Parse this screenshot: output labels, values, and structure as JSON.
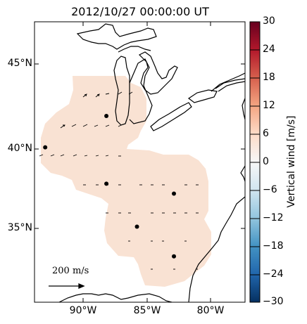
{
  "title": "2012/10/27 00:00:00 UT",
  "lat_ticks": [
    {
      "label": "45°N",
      "lat": 45
    },
    {
      "label": "40°N",
      "lat": 40
    },
    {
      "label": "35°N",
      "lat": 35
    }
  ],
  "lon_ticks": [
    {
      "label": "90°W",
      "lon": -90
    },
    {
      "label": "85°W",
      "lon": -85
    },
    {
      "label": "80°W",
      "lon": -80
    }
  ],
  "colorbar": {
    "title": "Vertical wind [m/s]",
    "ticks": [
      "30",
      "24",
      "18",
      "12",
      "6",
      "0",
      "−6",
      "−12",
      "−18",
      "−24",
      "−30"
    ],
    "min": -30,
    "max": 30,
    "colormap": "RdBu_r"
  },
  "scale_arrow": {
    "label": "200 m/s",
    "value": 200
  },
  "field": {
    "fill_color": "#f9e2d3",
    "value_mps": 3
  },
  "radar_sites": [
    {
      "lon": -88.2,
      "lat": 42.0
    },
    {
      "lon": -93.0,
      "lat": 40.1
    },
    {
      "lon": -88.2,
      "lat": 37.9
    },
    {
      "lon": -82.9,
      "lat": 37.3
    },
    {
      "lon": -85.8,
      "lat": 35.3
    },
    {
      "lon": -82.9,
      "lat": 33.5
    }
  ],
  "colors": {
    "coast": "#000000",
    "marker": "#000000"
  }
}
